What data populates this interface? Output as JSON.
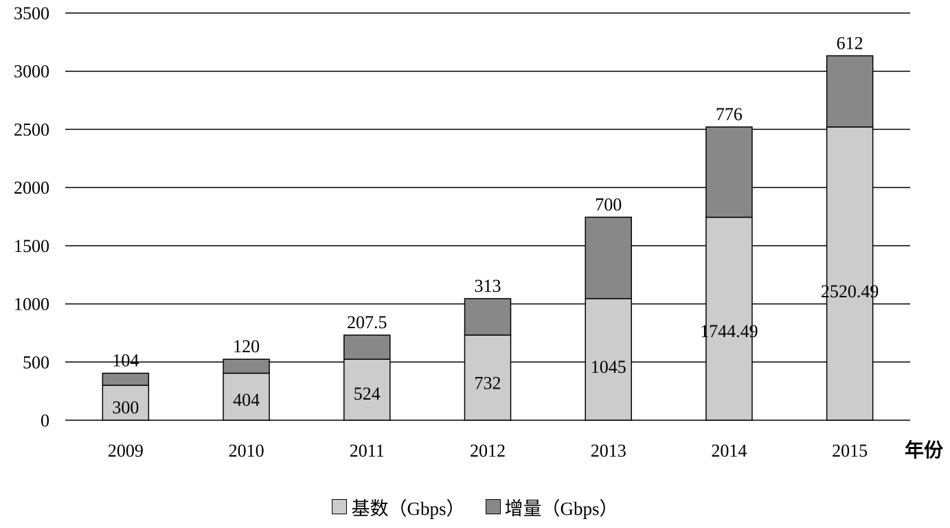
{
  "chart_data": {
    "type": "bar",
    "stacked": true,
    "categories": [
      "2009",
      "2010",
      "2011",
      "2012",
      "2013",
      "2014",
      "2015"
    ],
    "series": [
      {
        "name": "基数（Gbps）",
        "color": "#cccccc",
        "values": [
          300,
          404,
          524,
          732,
          1045,
          1744.49,
          2520.49
        ],
        "labels": [
          "300",
          "404",
          "524",
          "732",
          "1045",
          "1744.49",
          "2520.49"
        ]
      },
      {
        "name": "增量（Gbps）",
        "color": "#888888",
        "values": [
          104,
          120,
          207.5,
          313,
          700,
          776,
          612
        ],
        "labels": [
          "104",
          "120",
          "207.5",
          "313",
          "700",
          "776",
          "612"
        ]
      }
    ],
    "ylim": [
      0,
      3500
    ],
    "yticks": [
      "0",
      "500",
      "1000",
      "1500",
      "2000",
      "2500",
      "3000",
      "3500"
    ],
    "xlabel": "年份",
    "ylabel": "",
    "grid": true,
    "legend_position": "bottom"
  }
}
